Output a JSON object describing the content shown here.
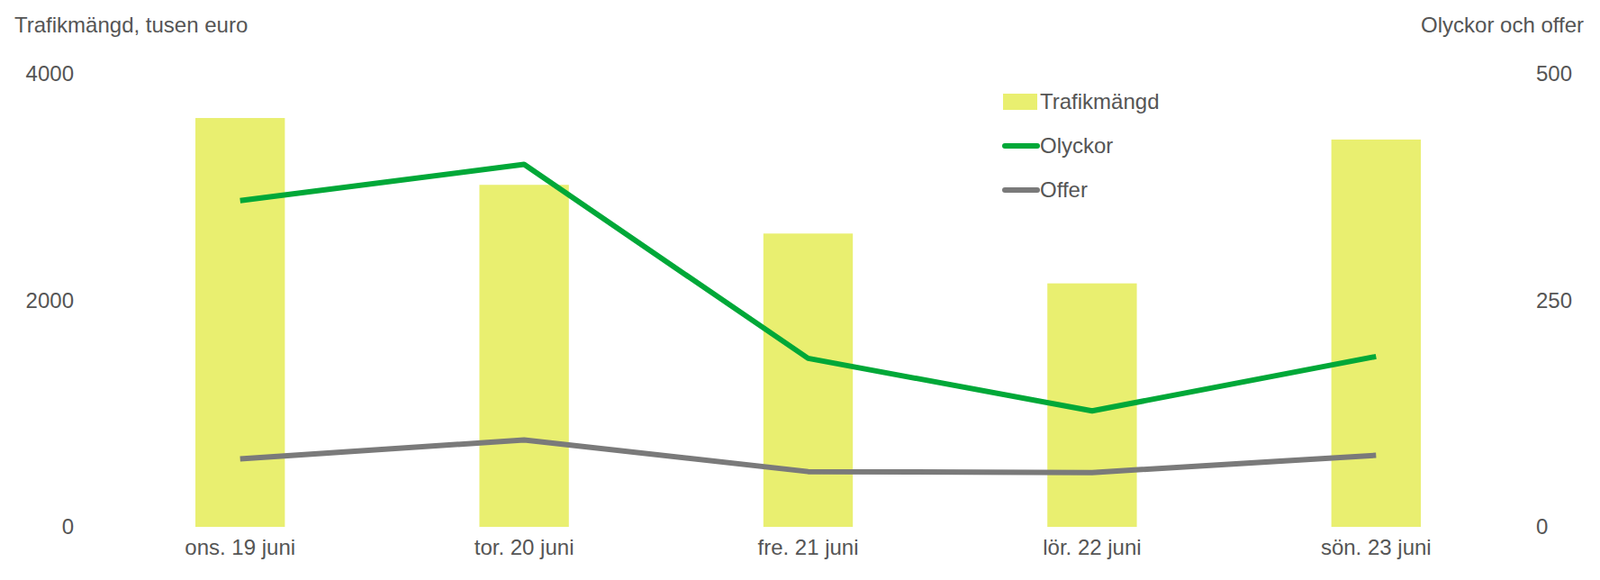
{
  "chart_data": {
    "type": "bar",
    "ylabel": "Trafikmängd, tusen euro",
    "y2label": "Olyckor och offer",
    "categories": [
      "ons. 19 juni",
      "tor. 20 juni",
      "fre. 21 juni",
      "lör. 22 juni",
      "sön. 23 juni"
    ],
    "series": [
      {
        "name": "Trafikmängd",
        "type": "bar",
        "color": "#e9ef70",
        "values": [
          3610,
          3020,
          2590,
          2150,
          3420
        ]
      },
      {
        "name": "Olyckor",
        "type": "line",
        "axis": "y2",
        "color": "#00a838",
        "values": [
          360,
          400,
          186,
          128,
          188
        ]
      },
      {
        "name": "Offer",
        "type": "line",
        "axis": "y2",
        "color": "#7a7a7a",
        "values": [
          75,
          96,
          61,
          60,
          79
        ]
      }
    ],
    "ylim": [
      0,
      4000
    ],
    "yticks": [
      0,
      2000,
      4000
    ],
    "y2lim": [
      0,
      500
    ],
    "y2ticks": [
      0,
      250,
      500
    ],
    "grid": false,
    "legend": "top-right"
  }
}
